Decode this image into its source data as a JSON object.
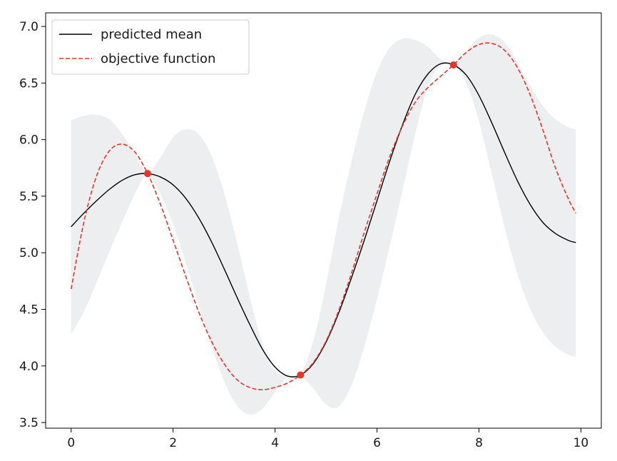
{
  "chart_data": {
    "type": "line",
    "xlim": [
      -0.5,
      10.4
    ],
    "ylim": [
      3.45,
      7.12
    ],
    "xticks": [
      0,
      2,
      4,
      6,
      8,
      10
    ],
    "yticks": [
      3.5,
      4.0,
      4.5,
      5.0,
      5.5,
      6.0,
      6.5,
      7.0
    ],
    "xtick_labels": [
      "0",
      "2",
      "4",
      "6",
      "8",
      "10"
    ],
    "ytick_labels": [
      "3.5",
      "4.0",
      "4.5",
      "5.0",
      "5.5",
      "6.0",
      "6.5",
      "7.0"
    ],
    "grid": false,
    "legend_position": "top-left",
    "colors": {
      "mean": "#000000",
      "objective": "#e8352b",
      "band": "#eceef0",
      "observed": "#e8352b"
    },
    "series": [
      {
        "name": "predicted mean",
        "style": "solid",
        "x": [
          0,
          0.25,
          0.5,
          0.75,
          1.0,
          1.25,
          1.5,
          1.75,
          2.0,
          2.25,
          2.5,
          2.75,
          3.0,
          3.25,
          3.5,
          3.75,
          4.0,
          4.25,
          4.5,
          4.75,
          5.0,
          5.25,
          5.5,
          5.75,
          6.0,
          6.25,
          6.5,
          6.75,
          7.0,
          7.25,
          7.5,
          7.75,
          8.0,
          8.25,
          8.5,
          8.75,
          9.0,
          9.25,
          9.5,
          9.75,
          9.9
        ],
        "y": [
          5.23,
          5.35,
          5.46,
          5.56,
          5.64,
          5.69,
          5.7,
          5.67,
          5.6,
          5.48,
          5.31,
          5.1,
          4.86,
          4.61,
          4.37,
          4.15,
          3.99,
          3.91,
          3.92,
          4.02,
          4.21,
          4.47,
          4.78,
          5.11,
          5.46,
          5.81,
          6.13,
          6.4,
          6.58,
          6.67,
          6.66,
          6.57,
          6.39,
          6.15,
          5.89,
          5.64,
          5.43,
          5.27,
          5.17,
          5.11,
          5.09
        ]
      },
      {
        "name": "objective function",
        "style": "dashed",
        "x": [
          0,
          0.25,
          0.5,
          0.75,
          1.0,
          1.25,
          1.5,
          1.75,
          2.0,
          2.25,
          2.5,
          2.75,
          3.0,
          3.25,
          3.5,
          3.75,
          4.0,
          4.25,
          4.5,
          4.75,
          5.0,
          5.25,
          5.5,
          5.75,
          6.0,
          6.25,
          6.5,
          6.75,
          7.0,
          7.25,
          7.5,
          7.75,
          8.0,
          8.25,
          8.5,
          8.75,
          9.0,
          9.25,
          9.5,
          9.75,
          9.9
        ],
        "y": [
          4.68,
          5.27,
          5.68,
          5.9,
          5.96,
          5.89,
          5.7,
          5.43,
          5.11,
          4.79,
          4.48,
          4.22,
          4.02,
          3.88,
          3.81,
          3.79,
          3.81,
          3.85,
          3.92,
          4.03,
          4.22,
          4.49,
          4.82,
          5.18,
          5.52,
          5.85,
          6.12,
          6.33,
          6.46,
          6.56,
          6.66,
          6.77,
          6.84,
          6.85,
          6.79,
          6.64,
          6.4,
          6.09,
          5.75,
          5.48,
          5.35
        ]
      }
    ],
    "uncertainty_band": {
      "x": [
        0,
        0.25,
        0.5,
        0.75,
        1.0,
        1.25,
        1.5,
        1.75,
        2.0,
        2.25,
        2.5,
        2.75,
        3.0,
        3.25,
        3.5,
        3.75,
        4.0,
        4.25,
        4.5,
        4.75,
        5.0,
        5.25,
        5.5,
        5.75,
        6.0,
        6.25,
        6.5,
        6.75,
        7.0,
        7.25,
        7.5,
        7.75,
        8.0,
        8.25,
        8.5,
        8.75,
        9.0,
        9.25,
        9.5,
        9.75,
        9.9
      ],
      "lower": [
        4.28,
        4.48,
        4.74,
        5.01,
        5.27,
        5.52,
        5.69,
        5.52,
        5.25,
        4.91,
        4.54,
        4.18,
        3.87,
        3.65,
        3.57,
        3.62,
        3.77,
        3.9,
        3.91,
        3.8,
        3.66,
        3.64,
        3.83,
        4.17,
        4.59,
        5.06,
        5.55,
        6.05,
        6.47,
        6.65,
        6.66,
        6.5,
        6.16,
        5.7,
        5.23,
        4.82,
        4.51,
        4.3,
        4.17,
        4.1,
        4.08
      ],
      "upper": [
        6.17,
        6.21,
        6.22,
        6.18,
        6.05,
        5.87,
        5.71,
        5.84,
        6.02,
        6.09,
        6.05,
        5.86,
        5.53,
        5.1,
        4.62,
        4.2,
        3.96,
        3.91,
        3.93,
        4.22,
        4.72,
        5.3,
        5.81,
        6.25,
        6.6,
        6.81,
        6.89,
        6.88,
        6.82,
        6.71,
        6.67,
        6.78,
        6.9,
        6.93,
        6.86,
        6.68,
        6.48,
        6.3,
        6.18,
        6.11,
        6.09
      ]
    },
    "observed_points": [
      {
        "x": 1.5,
        "y": 5.7
      },
      {
        "x": 4.5,
        "y": 3.92
      },
      {
        "x": 7.5,
        "y": 6.66
      }
    ]
  }
}
